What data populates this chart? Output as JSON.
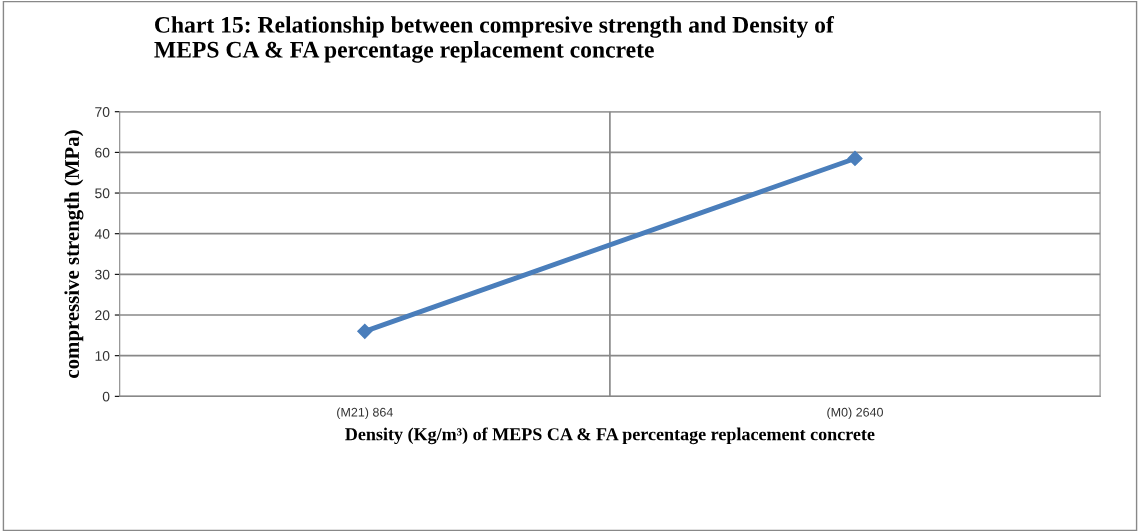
{
  "chart_data": {
    "type": "line",
    "title": "Chart 15: Relationship between compresive strength and Density of\nMEPS CA & FA percentage replacement concrete",
    "xlabel": "Density (Kg/m³) of MEPS CA & FA percentage replacement concrete",
    "ylabel": "compressive strength (MPa)",
    "categories": [
      "(M21) 864",
      "(M0) 2640"
    ],
    "series": [
      {
        "color": "#4a7ebb",
        "values": [
          16,
          58.5
        ]
      }
    ],
    "ylim": [
      0,
      70
    ],
    "yticks": [
      0,
      10,
      20,
      30,
      40,
      50,
      60,
      70
    ],
    "grid": true,
    "marker": "diamond",
    "line_style": "solid",
    "legend": false
  }
}
